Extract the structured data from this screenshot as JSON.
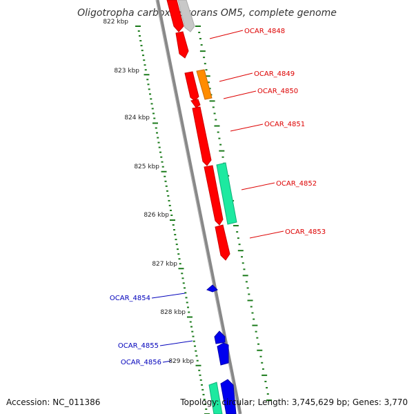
{
  "title": "Oligotropha carboxidovorans OM5, complete genome",
  "accession": "Accession: NC_011386",
  "summary": "Topology: circular; Length: 3,745,629 bp; Genes: 3,770",
  "colors": {
    "backbone": "#888888",
    "tick": "#1a7a1a",
    "gene_red": "#ff0000",
    "gene_orange": "#ff8c00",
    "gene_green": "#1de9a0",
    "gene_blue": "#0000ee",
    "gene_grey": "#c8c8c8",
    "label_red": "#dd0000",
    "label_blue": "#0000bb"
  },
  "kbp_labels": [
    "822 kbp",
    "823 kbp",
    "824 kbp",
    "825 kbp",
    "826 kbp",
    "827 kbp",
    "828 kbp",
    "829 kbp"
  ],
  "genes": [
    {
      "label": "OCAR_4848",
      "color": "red"
    },
    {
      "label": "OCAR_4849",
      "color": "orange"
    },
    {
      "label": "OCAR_4850",
      "color": "red"
    },
    {
      "label": "OCAR_4851",
      "color": "red"
    },
    {
      "label": "OCAR_4852",
      "color": "green"
    },
    {
      "label": "OCAR_4853",
      "color": "red"
    },
    {
      "label": "OCAR_4854",
      "color": "blue"
    },
    {
      "label": "OCAR_4855",
      "color": "blue"
    },
    {
      "label": "OCAR_4856",
      "color": "blue"
    }
  ]
}
